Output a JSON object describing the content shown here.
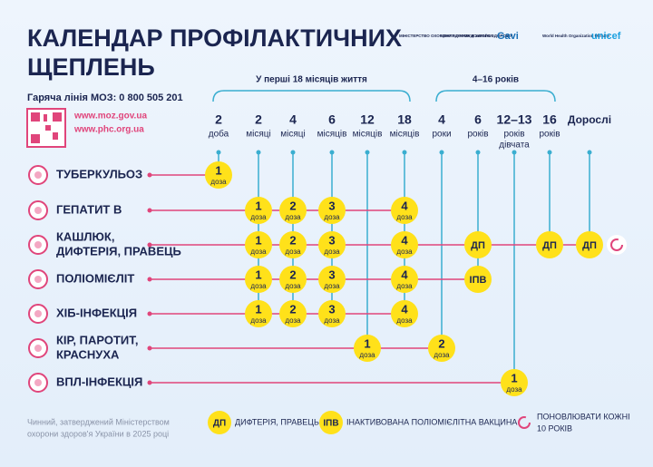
{
  "header": {
    "title": [
      "КАЛЕНДАР ПРОФІЛАКТИЧНИХ",
      "ЩЕПЛЕНЬ"
    ],
    "hotline": "Гаряча лінія МОЗ: 0 800 505 201",
    "links": [
      "www.moz.gov.ua",
      "www.phc.org.ua"
    ],
    "logos": [
      "МІНІСТЕРСТВО ОХОРОНИ ЗДОРОВ'Я УКРАЇНИ",
      "ЦЕНТР ГРОМАДСЬКОГО ЗДОРОВ'Я",
      "Gavi",
      "World Health Organization Ukraine",
      "unicef"
    ]
  },
  "groups": [
    "У перші 18 місяців життя",
    "4–16 років"
  ],
  "columns": [
    {
      "num": "2",
      "unit": "доба"
    },
    {
      "num": "2",
      "unit": "місяці"
    },
    {
      "num": "4",
      "unit": "місяці"
    },
    {
      "num": "6",
      "unit": "місяців"
    },
    {
      "num": "12",
      "unit": "місяців"
    },
    {
      "num": "18",
      "unit": "місяців"
    },
    {
      "num": "4",
      "unit": "роки"
    },
    {
      "num": "6",
      "unit": "років"
    },
    {
      "num": "12–13",
      "unit": "років",
      "note": "дівчата"
    },
    {
      "num": "16",
      "unit": "років"
    },
    {
      "num": "Дорослі"
    }
  ],
  "rows": [
    {
      "name": [
        "ТУБЕРКУЛЬОЗ"
      ],
      "cells": [
        {
          "main": "1",
          "sub": "доза"
        },
        null,
        null,
        null,
        null,
        null,
        null,
        null,
        null,
        null,
        null
      ]
    },
    {
      "name": [
        "ГЕПАТИТ В"
      ],
      "cells": [
        null,
        {
          "main": "1",
          "sub": "доза"
        },
        {
          "main": "2",
          "sub": "доза"
        },
        {
          "main": "3",
          "sub": "доза"
        },
        null,
        {
          "main": "4",
          "sub": "доза"
        },
        null,
        null,
        null,
        null,
        null
      ]
    },
    {
      "name": [
        "КАШЛЮК,",
        "ДИФТЕРІЯ, ПРАВЕЦЬ"
      ],
      "cells": [
        null,
        {
          "main": "1",
          "sub": "доза"
        },
        {
          "main": "2",
          "sub": "доза"
        },
        {
          "main": "3",
          "sub": "доза"
        },
        null,
        {
          "main": "4",
          "sub": "доза"
        },
        null,
        {
          "main": "ДП"
        },
        null,
        {
          "main": "ДП"
        },
        {
          "main": "ДП"
        }
      ]
    },
    {
      "name": [
        "ПОЛІОМІЄЛІТ"
      ],
      "cells": [
        null,
        {
          "main": "1",
          "sub": "доза"
        },
        {
          "main": "2",
          "sub": "доза"
        },
        {
          "main": "3",
          "sub": "доза"
        },
        null,
        {
          "main": "4",
          "sub": "доза"
        },
        null,
        {
          "main": "ІПВ"
        },
        null,
        null,
        null
      ]
    },
    {
      "name": [
        "ХІБ-ІНФЕКЦІЯ"
      ],
      "cells": [
        null,
        {
          "main": "1",
          "sub": "доза"
        },
        {
          "main": "2",
          "sub": "доза"
        },
        {
          "main": "3",
          "sub": "доза"
        },
        null,
        {
          "main": "4",
          "sub": "доза"
        },
        null,
        null,
        null,
        null,
        null
      ]
    },
    {
      "name": [
        "КІР, ПАРОТИТ,",
        "КРАСНУХА"
      ],
      "cells": [
        null,
        null,
        null,
        null,
        {
          "main": "1",
          "sub": "доза"
        },
        null,
        {
          "main": "2",
          "sub": "доза"
        },
        null,
        null,
        null,
        null
      ]
    },
    {
      "name": [
        "ВПЛ-ІНФЕКЦІЯ"
      ],
      "cells": [
        null,
        null,
        null,
        null,
        null,
        null,
        null,
        null,
        {
          "main": "1",
          "sub": "доза"
        },
        null,
        null
      ]
    }
  ],
  "legend": [
    {
      "key": "ДП",
      "text": [
        "ДИФТЕРІЯ, ПРАВЕЦЬ"
      ]
    },
    {
      "key": "ІПВ",
      "text": [
        "ІНАКТИВОВАНА ПОЛІОМІЄЛІТНА ВАКЦИНА"
      ]
    },
    {
      "text": [
        "ПОНОВЛЮВАТИ КОЖНІ",
        "10 РОКІВ"
      ]
    }
  ],
  "footer": [
    "Чинний, затверджений Міністерством",
    "охорони здоров'я України в 2025 році"
  ]
}
